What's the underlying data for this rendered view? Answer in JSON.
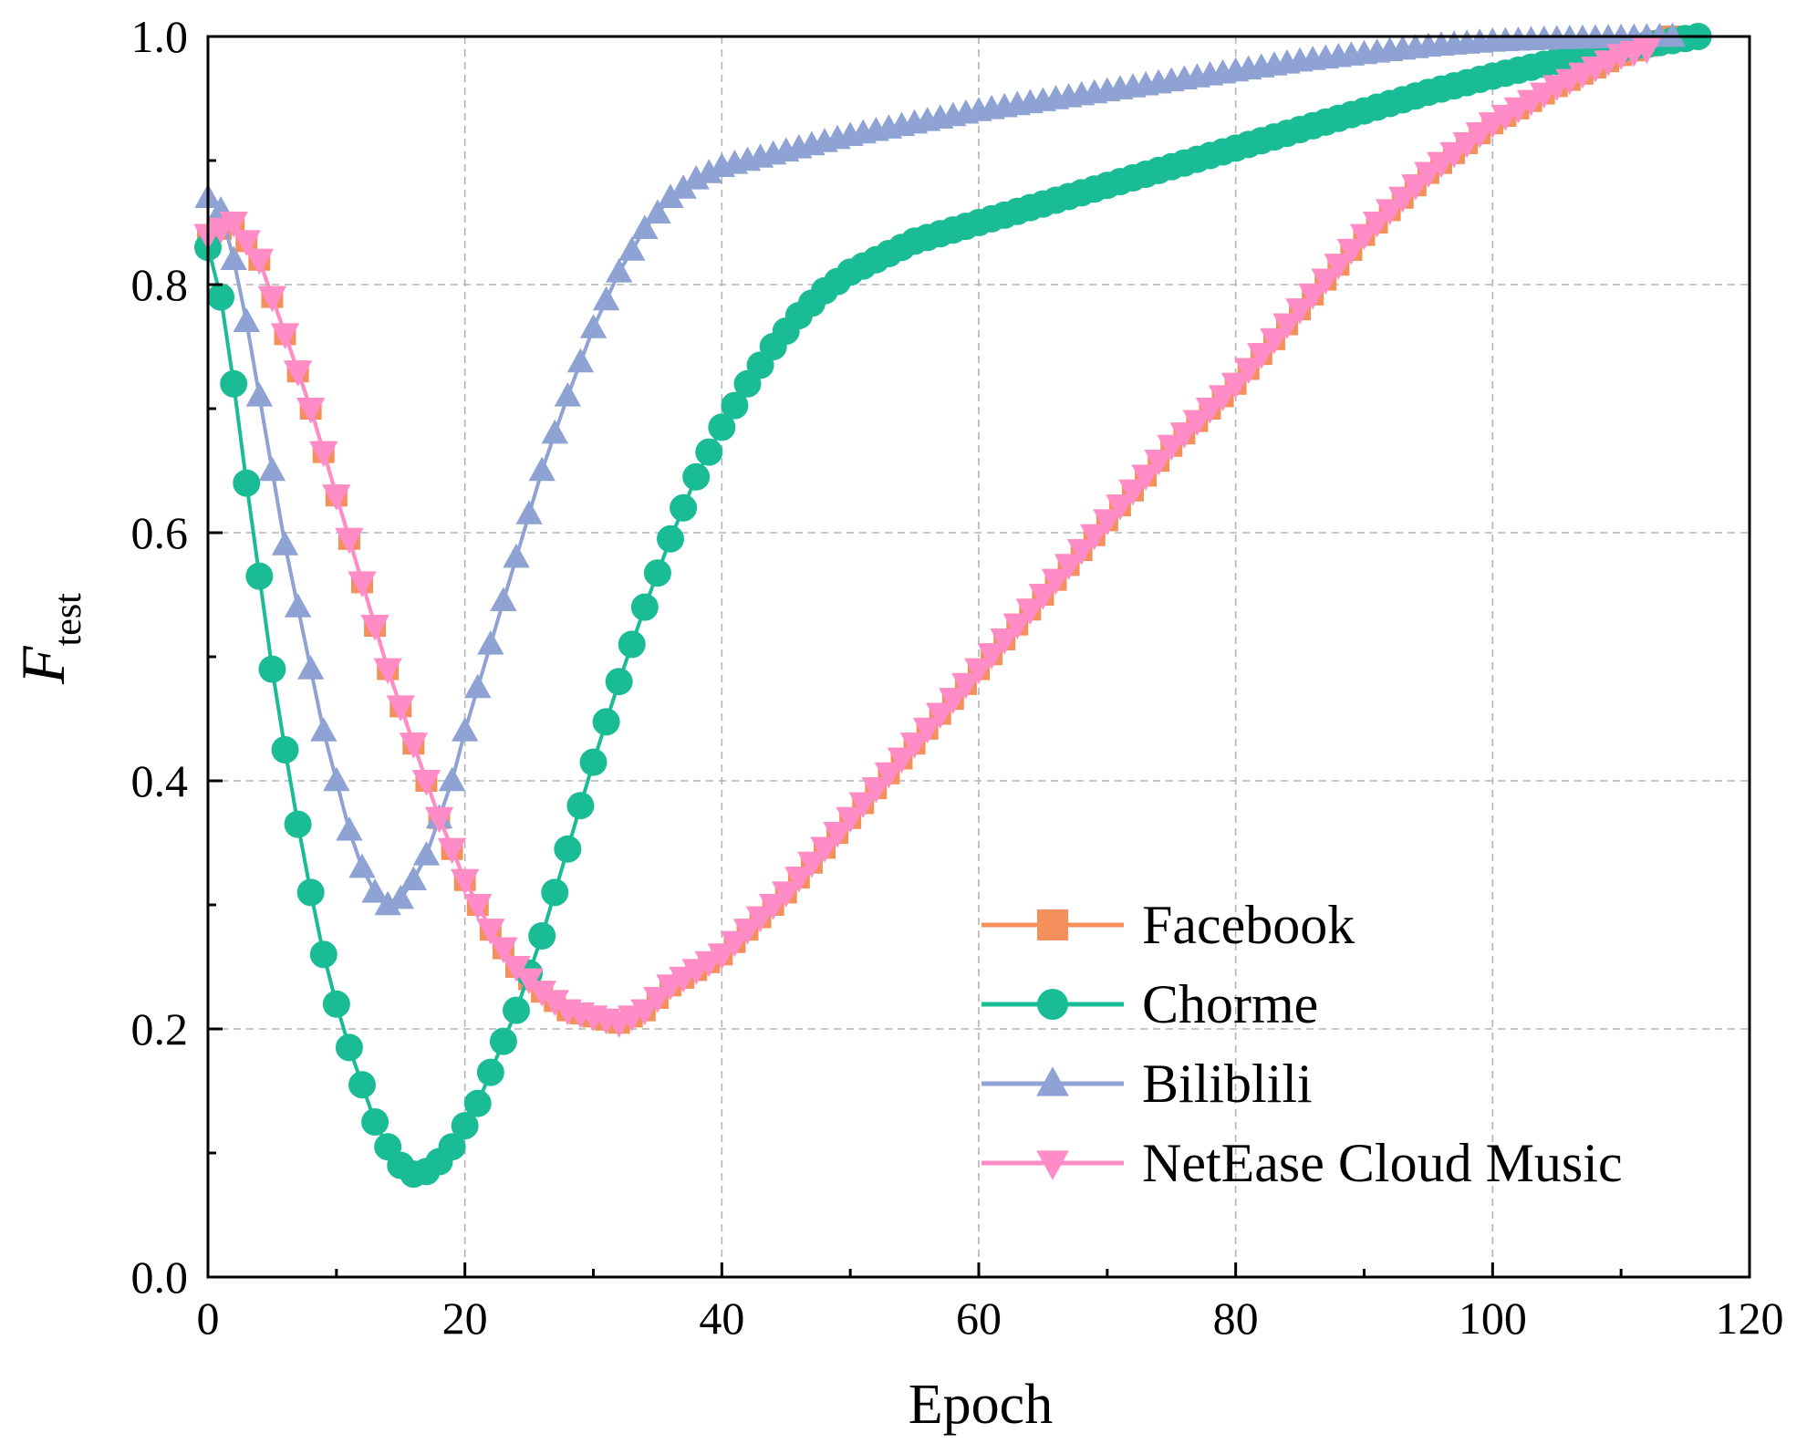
{
  "chart_data": {
    "type": "line",
    "title": "",
    "xlabel": "Epoch",
    "ylabel_main": "F",
    "ylabel_sub": "test",
    "xlim": [
      0,
      120
    ],
    "ylim": [
      0,
      1.0
    ],
    "xticks": [
      0,
      20,
      40,
      60,
      80,
      100,
      120
    ],
    "xtick_labels": [
      "0",
      "20",
      "40",
      "60",
      "80",
      "100",
      "120"
    ],
    "yticks": [
      0,
      0.2,
      0.4,
      0.6,
      0.8,
      1.0
    ],
    "ytick_labels": [
      "0.0",
      "0.2",
      "0.4",
      "0.6",
      "0.8",
      "1.0"
    ],
    "grid": true,
    "legend_position": "bottom-right",
    "series": [
      {
        "name": "Facebook",
        "color": "#F4905C",
        "marker": "square",
        "x_range": [
          0,
          114
        ],
        "keypoints": [
          [
            0,
            0.84
          ],
          [
            2,
            0.85
          ],
          [
            4,
            0.82
          ],
          [
            6,
            0.76
          ],
          [
            8,
            0.7
          ],
          [
            10,
            0.63
          ],
          [
            12,
            0.56
          ],
          [
            14,
            0.49
          ],
          [
            16,
            0.43
          ],
          [
            18,
            0.37
          ],
          [
            20,
            0.32
          ],
          [
            22,
            0.28
          ],
          [
            24,
            0.25
          ],
          [
            26,
            0.23
          ],
          [
            28,
            0.215
          ],
          [
            30,
            0.21
          ],
          [
            32,
            0.205
          ],
          [
            34,
            0.215
          ],
          [
            36,
            0.235
          ],
          [
            40,
            0.26
          ],
          [
            45,
            0.31
          ],
          [
            50,
            0.37
          ],
          [
            55,
            0.43
          ],
          [
            60,
            0.49
          ],
          [
            65,
            0.55
          ],
          [
            70,
            0.61
          ],
          [
            75,
            0.67
          ],
          [
            80,
            0.72
          ],
          [
            85,
            0.78
          ],
          [
            90,
            0.84
          ],
          [
            95,
            0.89
          ],
          [
            100,
            0.93
          ],
          [
            105,
            0.96
          ],
          [
            110,
            0.985
          ],
          [
            114,
            1.0
          ]
        ]
      },
      {
        "name": "Chorme",
        "color": "#1ABC96",
        "marker": "circle",
        "x_range": [
          0,
          116
        ],
        "keypoints": [
          [
            0,
            0.83
          ],
          [
            1,
            0.79
          ],
          [
            2,
            0.72
          ],
          [
            3,
            0.64
          ],
          [
            4,
            0.565
          ],
          [
            5,
            0.49
          ],
          [
            6,
            0.425
          ],
          [
            7,
            0.365
          ],
          [
            8,
            0.31
          ],
          [
            9,
            0.26
          ],
          [
            10,
            0.22
          ],
          [
            11,
            0.185
          ],
          [
            12,
            0.155
          ],
          [
            13,
            0.125
          ],
          [
            14,
            0.105
          ],
          [
            15,
            0.09
          ],
          [
            16,
            0.083
          ],
          [
            17,
            0.085
          ],
          [
            18,
            0.093
          ],
          [
            19,
            0.105
          ],
          [
            20,
            0.122
          ],
          [
            21,
            0.14
          ],
          [
            22,
            0.165
          ],
          [
            23,
            0.19
          ],
          [
            24,
            0.215
          ],
          [
            25,
            0.245
          ],
          [
            26,
            0.275
          ],
          [
            27,
            0.31
          ],
          [
            28,
            0.345
          ],
          [
            29,
            0.38
          ],
          [
            30,
            0.415
          ],
          [
            32,
            0.48
          ],
          [
            34,
            0.54
          ],
          [
            36,
            0.595
          ],
          [
            38,
            0.645
          ],
          [
            40,
            0.685
          ],
          [
            42,
            0.72
          ],
          [
            44,
            0.75
          ],
          [
            46,
            0.775
          ],
          [
            48,
            0.795
          ],
          [
            50,
            0.81
          ],
          [
            55,
            0.835
          ],
          [
            60,
            0.85
          ],
          [
            65,
            0.865
          ],
          [
            70,
            0.88
          ],
          [
            75,
            0.895
          ],
          [
            80,
            0.91
          ],
          [
            85,
            0.925
          ],
          [
            90,
            0.94
          ],
          [
            95,
            0.955
          ],
          [
            100,
            0.968
          ],
          [
            105,
            0.98
          ],
          [
            110,
            0.99
          ],
          [
            116,
            1.0
          ]
        ]
      },
      {
        "name": "Biliblili",
        "color": "#8EA2D4",
        "marker": "triangle-up",
        "x_range": [
          0,
          114
        ],
        "keypoints": [
          [
            0,
            0.87
          ],
          [
            1,
            0.86
          ],
          [
            2,
            0.82
          ],
          [
            3,
            0.77
          ],
          [
            4,
            0.71
          ],
          [
            5,
            0.65
          ],
          [
            6,
            0.59
          ],
          [
            7,
            0.54
          ],
          [
            8,
            0.49
          ],
          [
            9,
            0.44
          ],
          [
            10,
            0.4
          ],
          [
            11,
            0.36
          ],
          [
            12,
            0.33
          ],
          [
            13,
            0.31
          ],
          [
            14,
            0.3
          ],
          [
            15,
            0.305
          ],
          [
            16,
            0.32
          ],
          [
            17,
            0.34
          ],
          [
            18,
            0.37
          ],
          [
            19,
            0.4
          ],
          [
            20,
            0.44
          ],
          [
            22,
            0.51
          ],
          [
            24,
            0.58
          ],
          [
            26,
            0.65
          ],
          [
            28,
            0.71
          ],
          [
            30,
            0.765
          ],
          [
            32,
            0.81
          ],
          [
            34,
            0.845
          ],
          [
            36,
            0.87
          ],
          [
            38,
            0.885
          ],
          [
            40,
            0.895
          ],
          [
            44,
            0.905
          ],
          [
            50,
            0.92
          ],
          [
            55,
            0.93
          ],
          [
            60,
            0.94
          ],
          [
            65,
            0.948
          ],
          [
            70,
            0.956
          ],
          [
            75,
            0.964
          ],
          [
            80,
            0.972
          ],
          [
            85,
            0.98
          ],
          [
            90,
            0.986
          ],
          [
            95,
            0.992
          ],
          [
            100,
            0.996
          ],
          [
            105,
            0.998
          ],
          [
            114,
            1.0
          ]
        ]
      },
      {
        "name": "NetEase Cloud Music",
        "color": "#FF8CC6",
        "marker": "triangle-down",
        "x_range": [
          0,
          112
        ],
        "keypoints": [
          [
            0,
            0.84
          ],
          [
            2,
            0.85
          ],
          [
            4,
            0.82
          ],
          [
            6,
            0.76
          ],
          [
            8,
            0.7
          ],
          [
            10,
            0.63
          ],
          [
            12,
            0.56
          ],
          [
            14,
            0.49
          ],
          [
            16,
            0.43
          ],
          [
            18,
            0.37
          ],
          [
            20,
            0.32
          ],
          [
            22,
            0.28
          ],
          [
            24,
            0.25
          ],
          [
            26,
            0.23
          ],
          [
            28,
            0.215
          ],
          [
            30,
            0.21
          ],
          [
            32,
            0.205
          ],
          [
            34,
            0.215
          ],
          [
            36,
            0.235
          ],
          [
            40,
            0.26
          ],
          [
            45,
            0.31
          ],
          [
            50,
            0.37
          ],
          [
            55,
            0.43
          ],
          [
            60,
            0.49
          ],
          [
            65,
            0.55
          ],
          [
            70,
            0.61
          ],
          [
            75,
            0.67
          ],
          [
            80,
            0.72
          ],
          [
            85,
            0.78
          ],
          [
            90,
            0.84
          ],
          [
            95,
            0.89
          ],
          [
            100,
            0.93
          ],
          [
            105,
            0.96
          ],
          [
            110,
            0.985
          ],
          [
            112,
            0.99
          ]
        ]
      }
    ]
  }
}
